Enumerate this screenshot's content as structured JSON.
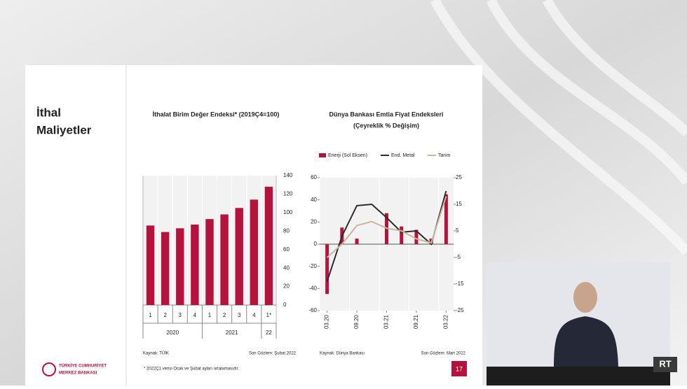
{
  "slide": {
    "title_line1": "İthal",
    "title_line2": "Maliyetler",
    "footnote": "* 2022Ç1 verisi Ocak ve Şubat ayları ortalamasıdır.",
    "logo_line1": "TÜRKİYE CUMHURİYET",
    "logo_line2": "MERKEZ BANKASI",
    "page_number": "17",
    "watermark": "RT"
  },
  "chart_data": [
    {
      "type": "bar",
      "title": "İthalat Birim Değer Endeksi* (2019Ç4=100)",
      "categories": [
        "1",
        "2",
        "3",
        "4",
        "1",
        "2",
        "3",
        "4",
        "1*"
      ],
      "group_labels": [
        "2020",
        "2021",
        "22"
      ],
      "values": [
        86,
        79,
        83,
        87,
        93,
        98,
        105,
        114,
        128
      ],
      "color": "#b5123e",
      "ylim": [
        0,
        140
      ],
      "yticks": [
        0,
        20,
        40,
        60,
        80,
        100,
        120,
        140
      ],
      "grid": false,
      "source": "Kaynak: TÜİK",
      "last_obs": "Son Gözlem: Şubat 2022"
    },
    {
      "type": "combo",
      "title": "Dünya Bankası Emtia Fiyat Endeksleri",
      "subtitle": "(Çeyreklik % Değişim)",
      "categories": [
        "03.20",
        null,
        "09.20",
        null,
        "03.21",
        null,
        "09.21",
        null,
        "03.22"
      ],
      "series": [
        {
          "name": "Enerji (Sol Eksen)",
          "kind": "bar",
          "axis": "y",
          "color": "#b5123e",
          "values": [
            -45,
            15,
            5,
            0,
            28,
            16,
            13,
            5,
            45
          ]
        },
        {
          "name": "End. Metal",
          "kind": "line",
          "axis": "y2",
          "color": "#2b2b2b",
          "values": [
            -14,
            3,
            14.5,
            15,
            10,
            4.5,
            5,
            0,
            20
          ]
        },
        {
          "name": "Tarım",
          "kind": "line",
          "axis": "y2",
          "color": "#c9b79a",
          "values": [
            -5,
            0,
            7,
            8.5,
            6,
            5,
            2,
            0.5,
            18
          ]
        }
      ],
      "ylim": [
        -60,
        60
      ],
      "yticks": [
        -60,
        -40,
        -20,
        0,
        20,
        40,
        60
      ],
      "y2lim": [
        -25,
        25
      ],
      "y2ticks": [
        -25,
        -15,
        -5,
        5,
        15,
        25
      ],
      "source": "Kaynak: Dünya Bankası",
      "last_obs": "Son Gözlem: Mart 2022"
    }
  ]
}
